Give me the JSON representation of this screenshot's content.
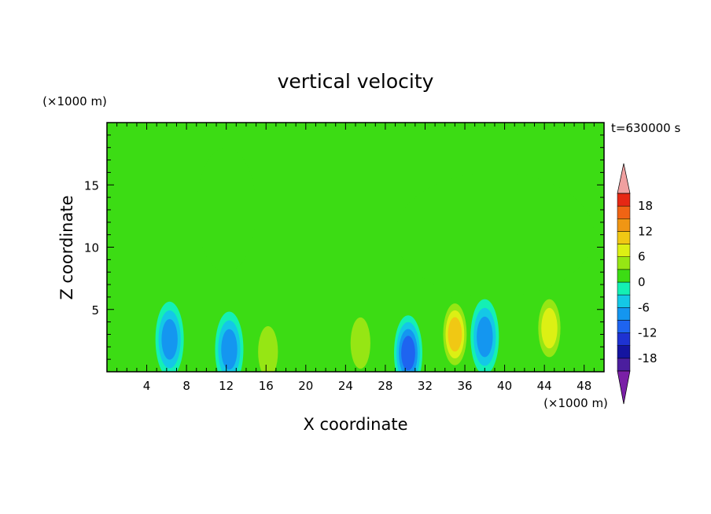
{
  "chart_data": {
    "type": "heatmap",
    "title": "vertical velocity",
    "xlabel": "X coordinate",
    "ylabel": "Z coordinate",
    "x_unit": "(×1000 m)",
    "y_unit": "(×1000 m)",
    "time_label": "t=630000 s",
    "xlim": [
      0,
      50
    ],
    "ylim": [
      0,
      20
    ],
    "x_ticks": [
      4,
      8,
      12,
      16,
      20,
      24,
      28,
      32,
      36,
      40,
      44,
      48
    ],
    "y_ticks": [
      5,
      10,
      15
    ],
    "colorbar": {
      "levels": [
        -21,
        -18,
        -15,
        -12,
        -9,
        -6,
        -3,
        0,
        3,
        6,
        9,
        12,
        15,
        18,
        21
      ],
      "tick_labels": [
        18,
        12,
        6,
        0,
        -6,
        -12,
        -18
      ],
      "colors": [
        "#7a1fa6",
        "#4b1e9e",
        "#1414a0",
        "#1e32d2",
        "#1e64f0",
        "#1496f0",
        "#14c8e6",
        "#14f0b4",
        "#3cdc14",
        "#96e614",
        "#dcf014",
        "#f0c814",
        "#f09614",
        "#f06414",
        "#e62814",
        "#f0a0a0"
      ],
      "extend": "both"
    },
    "background_level": 0,
    "features": [
      {
        "kind": "updraft-region",
        "x": [
          9,
          15
        ],
        "z": [
          8,
          18
        ],
        "w": 1.5
      },
      {
        "kind": "updraft-region",
        "x": [
          29,
          49
        ],
        "z": [
          6,
          16
        ],
        "w": 1.5
      },
      {
        "kind": "updraft-core",
        "x": 35,
        "z": 3,
        "w": 12
      },
      {
        "kind": "updraft-core",
        "x": 44.5,
        "z": 3.5,
        "w": 7
      },
      {
        "kind": "updraft-core",
        "x": 25.5,
        "z": 2.3,
        "w": 6
      },
      {
        "kind": "updraft-core",
        "x": 16.2,
        "z": 1.6,
        "w": 6
      },
      {
        "kind": "downdraft-core",
        "x": 6.3,
        "z": 2.6,
        "w": -9
      },
      {
        "kind": "downdraft-core",
        "x": 30.3,
        "z": 1.5,
        "w": -10
      },
      {
        "kind": "downdraft-core",
        "x": 38,
        "z": 2.8,
        "w": -8
      },
      {
        "kind": "downdraft-core",
        "x": 12.3,
        "z": 1.8,
        "w": -7
      }
    ]
  }
}
